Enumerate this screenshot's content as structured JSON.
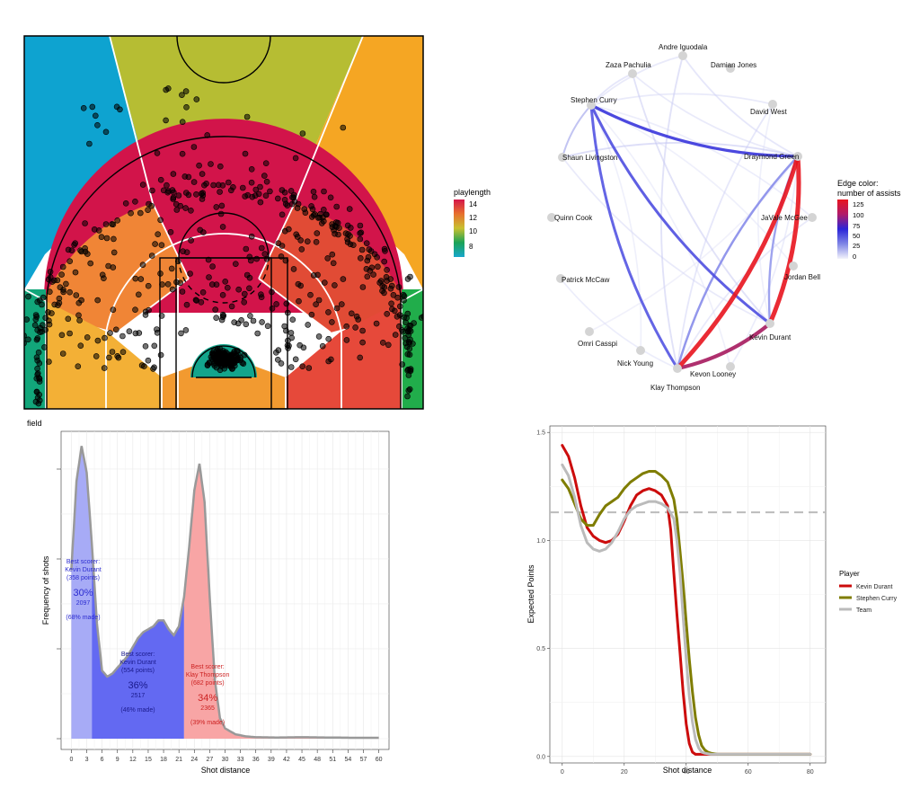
{
  "chart_data": [
    {
      "id": "court",
      "type": "heatmap",
      "legend": {
        "title": "playlength",
        "ticks": [
          "14",
          "12",
          "10",
          "8"
        ],
        "gradient": [
          "#d4164a",
          "#e7702e",
          "#c8c030",
          "#1aa357",
          "#18a7cc"
        ]
      },
      "zones": [
        {
          "name": "left-deep",
          "color": "#0ea3d0"
        },
        {
          "name": "center-deep",
          "color": "#b6bd33"
        },
        {
          "name": "right-deep",
          "color": "#f5a623"
        },
        {
          "name": "mid-range-arc",
          "color": "#d2144a"
        },
        {
          "name": "left-wing",
          "color": "#f08536"
        },
        {
          "name": "right-wing",
          "color": "#e14b35"
        },
        {
          "name": "left-corner",
          "color": "#12a67a"
        },
        {
          "name": "right-corner",
          "color": "#21ad4b"
        },
        {
          "name": "left-baseline",
          "color": "#f3b036"
        },
        {
          "name": "center-baseline",
          "color": "#f29a30"
        },
        {
          "name": "right-baseline",
          "color": "#e6493a"
        },
        {
          "name": "restricted-area",
          "color": "#13a58c"
        }
      ]
    },
    {
      "id": "network",
      "type": "scatter",
      "legend": {
        "title_line1": "Edge color:",
        "title_line2": "number of assists",
        "ticks": [
          "125",
          "100",
          "75",
          "50",
          "25",
          "0"
        ],
        "gradient": [
          "#e8141e",
          "#b01b6a",
          "#2b25d8",
          "#8087e6",
          "#f3f3fb"
        ]
      },
      "nodes": [
        {
          "id": "zp",
          "label": "Zaza Pachulia"
        },
        {
          "id": "ai",
          "label": "Andre Iguodala"
        },
        {
          "id": "dj",
          "label": "Damian Jones"
        },
        {
          "id": "sc",
          "label": "Stephen Curry"
        },
        {
          "id": "dw",
          "label": "David West"
        },
        {
          "id": "sl",
          "label": "Shaun Livingston"
        },
        {
          "id": "dg",
          "label": "Draymond Green"
        },
        {
          "id": "qc",
          "label": "Quinn Cook"
        },
        {
          "id": "jm",
          "label": "JaVale McGee"
        },
        {
          "id": "pm",
          "label": "Patrick McCaw"
        },
        {
          "id": "jb",
          "label": "Jordan Bell"
        },
        {
          "id": "oc",
          "label": "Omri Casspi"
        },
        {
          "id": "kd",
          "label": "Kevin Durant"
        },
        {
          "id": "ny",
          "label": "Nick Young"
        },
        {
          "id": "kl",
          "label": "Kevon Looney"
        },
        {
          "id": "kt",
          "label": "Klay Thompson"
        }
      ],
      "edges": [
        {
          "from": "kd",
          "to": "dg",
          "assists": 140
        },
        {
          "from": "kt",
          "to": "dg",
          "assists": 135
        },
        {
          "from": "kt",
          "to": "kd",
          "assists": 105
        },
        {
          "from": "sc",
          "to": "dg",
          "assists": 70
        },
        {
          "from": "sc",
          "to": "kd",
          "assists": 62
        },
        {
          "from": "sc",
          "to": "kt",
          "assists": 60
        },
        {
          "from": "dg",
          "to": "kt",
          "assists": 40
        },
        {
          "from": "dg",
          "to": "kd",
          "assists": 35
        },
        {
          "from": "sc",
          "to": "sl",
          "assists": 20
        },
        {
          "from": "dg",
          "to": "sl",
          "assists": 18
        },
        {
          "from": "zp",
          "to": "kd",
          "assists": 15
        },
        {
          "from": "ai",
          "to": "kt",
          "assists": 15
        },
        {
          "from": "dw",
          "to": "kt",
          "assists": 12
        },
        {
          "from": "zp",
          "to": "sc",
          "assists": 12
        },
        {
          "from": "ai",
          "to": "dg",
          "assists": 12
        },
        {
          "from": "jm",
          "to": "kt",
          "assists": 10
        },
        {
          "from": "dw",
          "to": "sc",
          "assists": 10
        },
        {
          "from": "kl",
          "to": "dg",
          "assists": 8
        },
        {
          "from": "sl",
          "to": "kd",
          "assists": 10
        },
        {
          "from": "ai",
          "to": "sc",
          "assists": 10
        },
        {
          "from": "zp",
          "to": "dg",
          "assists": 10
        },
        {
          "from": "jm",
          "to": "sc",
          "assists": 8
        },
        {
          "from": "pm",
          "to": "kt",
          "assists": 8
        },
        {
          "from": "jb",
          "to": "sc",
          "assists": 6
        },
        {
          "from": "ny",
          "to": "sc",
          "assists": 6
        },
        {
          "from": "kl",
          "to": "sc",
          "assists": 6
        },
        {
          "from": "oc",
          "to": "dg",
          "assists": 5
        },
        {
          "from": "dw",
          "to": "kd",
          "assists": 6
        }
      ]
    },
    {
      "id": "density",
      "type": "area",
      "title": "field",
      "xlabel": "Shot distance",
      "ylabel": "Frequency of shots",
      "xlim": [
        -2,
        62
      ],
      "ylim": [
        0,
        1
      ],
      "xticks": [
        "0",
        "3",
        "6",
        "9",
        "12",
        "15",
        "18",
        "21",
        "24",
        "27",
        "30",
        "33",
        "36",
        "39",
        "42",
        "45",
        "48",
        "51",
        "54",
        "57",
        "60"
      ],
      "x": [
        0,
        1,
        2,
        3,
        4,
        5,
        6,
        7,
        8,
        9,
        10,
        11,
        12,
        13,
        14,
        15,
        16,
        17,
        18,
        19,
        20,
        21,
        22,
        23,
        24,
        25,
        26,
        27,
        28,
        29,
        30,
        32,
        34,
        36,
        40,
        45,
        50,
        55,
        60
      ],
      "y": [
        0.57,
        0.87,
        0.99,
        0.9,
        0.66,
        0.39,
        0.23,
        0.21,
        0.22,
        0.24,
        0.26,
        0.28,
        0.31,
        0.34,
        0.36,
        0.37,
        0.38,
        0.4,
        0.4,
        0.37,
        0.35,
        0.38,
        0.48,
        0.65,
        0.84,
        0.93,
        0.8,
        0.48,
        0.2,
        0.07,
        0.035,
        0.015,
        0.008,
        0.005,
        0.004,
        0.005,
        0.004,
        0.003,
        0.003
      ],
      "regions": [
        {
          "from": 0,
          "to": 4,
          "color": "#a7abf6",
          "label_line1": "Best scorer:",
          "label_line2": "Kevin Durant",
          "points_text": "(358 points)",
          "percent": "30%",
          "count": "2097",
          "made_text": "(68% made)"
        },
        {
          "from": 4,
          "to": 22,
          "color": "#6369f2",
          "label_line1": "Best scorer:",
          "label_line2": "Kevin Durant",
          "points_text": "(554 points)",
          "percent": "36%",
          "count": "2517",
          "made_text": "(46% made)"
        },
        {
          "from": 22,
          "to": 60,
          "color": "#f8a5a5",
          "label_line1": "Best scorer:",
          "label_line2": "Klay Thompson",
          "points_text": "(682 points)",
          "percent": "34%",
          "count": "2365",
          "made_text": "(39% made)"
        }
      ]
    },
    {
      "id": "expected",
      "type": "line",
      "xlabel": "Shot distance",
      "ylabel": "Expected Points",
      "xlim": [
        -4,
        85
      ],
      "ylim": [
        -0.03,
        1.53
      ],
      "xticks": [
        0,
        20,
        40,
        60,
        80
      ],
      "yticks": [
        0.0,
        0.5,
        1.0,
        1.5
      ],
      "yticks_labels": [
        "0.0",
        "0.5",
        "1.0",
        "1.5"
      ],
      "xticks_labels": [
        "0",
        "20",
        "40",
        "60",
        "80"
      ],
      "reference_line": 1.13,
      "legend": {
        "title": "Player"
      },
      "series": [
        {
          "name": "Kevin Durant",
          "color": "#cc0c0c",
          "x": [
            0,
            2,
            4,
            6,
            8,
            10,
            12,
            14,
            16,
            18,
            20,
            22,
            24,
            26,
            28,
            30,
            32,
            34,
            35,
            36,
            37,
            38,
            39,
            40,
            41,
            42,
            43,
            44,
            46,
            50,
            55,
            60,
            65,
            70,
            75,
            80
          ],
          "y": [
            1.44,
            1.39,
            1.29,
            1.16,
            1.06,
            1.02,
            1.0,
            0.99,
            1.0,
            1.03,
            1.09,
            1.16,
            1.21,
            1.23,
            1.24,
            1.23,
            1.21,
            1.16,
            1.05,
            0.85,
            0.66,
            0.48,
            0.3,
            0.15,
            0.06,
            0.02,
            0.01,
            0.01,
            0.01,
            0.01,
            0.01,
            0.01,
            0.01,
            0.01,
            0.01,
            0.01
          ]
        },
        {
          "name": "Stephen Curry",
          "color": "#7f7d00",
          "x": [
            0,
            2,
            4,
            6,
            8,
            10,
            12,
            14,
            16,
            18,
            20,
            22,
            24,
            26,
            28,
            30,
            32,
            34,
            36,
            37,
            38,
            39,
            40,
            41,
            42,
            43,
            44,
            45,
            46,
            47,
            48,
            50,
            52,
            54,
            60,
            70,
            80
          ],
          "y": [
            1.28,
            1.24,
            1.17,
            1.1,
            1.07,
            1.07,
            1.12,
            1.16,
            1.18,
            1.2,
            1.24,
            1.27,
            1.29,
            1.31,
            1.32,
            1.32,
            1.3,
            1.27,
            1.19,
            1.1,
            0.95,
            0.8,
            0.62,
            0.45,
            0.3,
            0.18,
            0.1,
            0.05,
            0.03,
            0.02,
            0.015,
            0.01,
            0.01,
            0.01,
            0.01,
            0.01,
            0.01
          ]
        },
        {
          "name": "Team",
          "color": "#bbbbbb",
          "x": [
            0,
            2,
            4,
            6,
            8,
            10,
            12,
            14,
            16,
            18,
            20,
            22,
            24,
            26,
            28,
            30,
            32,
            34,
            36,
            37,
            38,
            39,
            40,
            41,
            42,
            43,
            44,
            45,
            46,
            48,
            50,
            55,
            60,
            70,
            80
          ],
          "y": [
            1.35,
            1.3,
            1.2,
            1.07,
            0.99,
            0.96,
            0.95,
            0.96,
            0.99,
            1.04,
            1.1,
            1.14,
            1.16,
            1.17,
            1.18,
            1.18,
            1.17,
            1.15,
            1.1,
            1.0,
            0.85,
            0.65,
            0.45,
            0.28,
            0.16,
            0.08,
            0.04,
            0.02,
            0.015,
            0.01,
            0.01,
            0.01,
            0.01,
            0.01,
            0.01
          ]
        }
      ]
    }
  ]
}
